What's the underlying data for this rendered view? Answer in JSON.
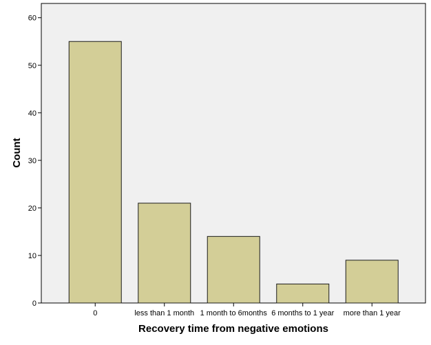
{
  "chart_data": {
    "type": "bar",
    "title": "",
    "xlabel": "Recovery time from negative emotions",
    "ylabel": "Count",
    "categories": [
      "0",
      "less than 1 month",
      "1 month to 6months",
      "6 months to 1 year",
      "more than 1 year"
    ],
    "values": [
      55,
      21,
      14,
      4,
      9
    ],
    "ylim": [
      0,
      63
    ],
    "yticks": [
      0,
      10,
      20,
      30,
      40,
      50,
      60
    ],
    "grid": false,
    "legend": "none",
    "colors": {
      "bar_fill": "#d3ce97",
      "bar_stroke": "#1a1a1a",
      "plot_background": "#f0f0f0",
      "axis": "#000000"
    }
  }
}
